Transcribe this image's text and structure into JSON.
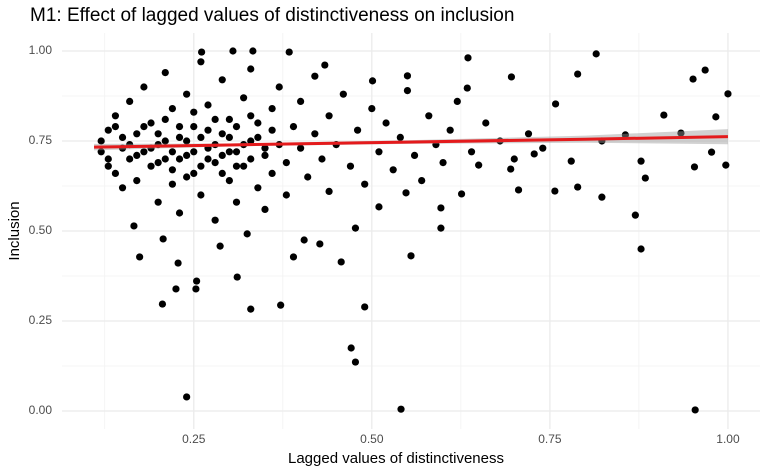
{
  "chart_data": {
    "type": "scatter",
    "title": "M1: Effect of lagged values of distinctiveness on inclusion",
    "x_label": "Lagged values of distinctiveness",
    "y_label": "Inclusion",
    "xlim": [
      0.065,
      1.045
    ],
    "ylim": [
      -0.05,
      1.05
    ],
    "xticks": [
      {
        "value": 0.25,
        "label": "0.25"
      },
      {
        "value": 0.5,
        "label": "0.50"
      },
      {
        "value": 0.75,
        "label": "0.75"
      },
      {
        "value": 1,
        "label": "1.00"
      }
    ],
    "yticks": [
      {
        "value": 0,
        "label": "0.00"
      },
      {
        "value": 0.25,
        "label": "0.25"
      },
      {
        "value": 0.5,
        "label": "0.50"
      },
      {
        "value": 0.75,
        "label": "0.75"
      },
      {
        "value": 1,
        "label": "1.00"
      }
    ],
    "x_minor_grid": [
      0.125,
      0.375,
      0.625,
      0.875
    ],
    "y_minor_grid": [
      0.125,
      0.375,
      0.625,
      0.875
    ],
    "grid": true,
    "color": "#000000",
    "x": [
      0.24,
      0.541,
      0.954,
      0.471,
      0.477,
      0.49,
      0.372,
      0.33,
      0.206,
      0.254,
      0.253,
      0.225,
      0.311,
      0.228,
      0.174,
      0.555,
      0.39,
      0.457,
      0.878,
      0.87,
      0.597,
      0.597,
      0.51,
      0.823,
      0.757,
      0.789,
      0.706,
      0.884,
      0.977,
      0.953,
      0.997,
      1.0,
      0.968,
      0.951,
      0.815,
      0.789,
      0.696,
      0.635,
      0.634,
      0.758,
      0.856,
      0.934,
      0.983,
      0.91,
      0.823,
      0.878,
      0.78,
      0.728,
      0.65,
      0.695,
      0.626,
      0.548,
      0.405,
      0.427,
      0.477,
      0.325,
      0.287,
      0.207,
      0.166,
      0.333,
      0.261,
      0.305,
      0.384,
      0.434,
      0.501,
      0.55,
      0.12,
      0.13,
      0.13,
      0.14,
      0.14,
      0.15,
      0.15,
      0.16,
      0.16,
      0.17,
      0.17,
      0.18,
      0.18,
      0.19,
      0.19,
      0.2,
      0.2,
      0.21,
      0.21,
      0.22,
      0.22,
      0.23,
      0.23,
      0.24,
      0.24,
      0.25,
      0.25,
      0.26,
      0.26,
      0.27,
      0.27,
      0.28,
      0.28,
      0.29,
      0.29,
      0.3,
      0.3,
      0.31,
      0.31,
      0.32,
      0.32,
      0.33,
      0.33,
      0.34,
      0.34,
      0.35,
      0.35,
      0.36,
      0.36,
      0.37,
      0.37,
      0.38,
      0.38,
      0.39,
      0.4,
      0.4,
      0.41,
      0.42,
      0.42,
      0.43,
      0.44,
      0.44,
      0.45,
      0.46,
      0.47,
      0.48,
      0.49,
      0.5,
      0.51,
      0.52,
      0.53,
      0.54,
      0.55,
      0.56,
      0.57,
      0.58,
      0.59,
      0.6,
      0.61,
      0.62,
      0.64,
      0.66,
      0.68,
      0.7,
      0.72,
      0.74,
      0.15,
      0.16,
      0.17,
      0.18,
      0.19,
      0.2,
      0.2,
      0.21,
      0.21,
      0.22,
      0.22,
      0.23,
      0.23,
      0.24,
      0.24,
      0.25,
      0.25,
      0.26,
      0.26,
      0.27,
      0.27,
      0.28,
      0.28,
      0.29,
      0.29,
      0.3,
      0.3,
      0.31,
      0.31,
      0.32,
      0.33,
      0.33,
      0.34,
      0.35,
      0.36,
      0.12,
      0.14,
      0.13
    ],
    "values": [
      0.039,
      0.005,
      0.003,
      0.175,
      0.136,
      0.289,
      0.294,
      0.283,
      0.297,
      0.361,
      0.339,
      0.339,
      0.372,
      0.411,
      0.428,
      0.431,
      0.428,
      0.414,
      0.45,
      0.544,
      0.564,
      0.508,
      0.567,
      0.594,
      0.611,
      0.622,
      0.614,
      0.647,
      0.719,
      0.678,
      0.683,
      0.881,
      0.947,
      0.922,
      0.992,
      0.936,
      0.928,
      0.981,
      0.897,
      0.853,
      0.767,
      0.772,
      0.817,
      0.822,
      0.75,
      0.694,
      0.694,
      0.714,
      0.683,
      0.672,
      0.603,
      0.606,
      0.475,
      0.464,
      0.508,
      0.492,
      0.458,
      0.478,
      0.514,
      1.0,
      0.997,
      1.0,
      0.997,
      0.961,
      0.917,
      0.931,
      0.75,
      0.7,
      0.78,
      0.66,
      0.82,
      0.73,
      0.62,
      0.86,
      0.7,
      0.77,
      0.64,
      0.9,
      0.72,
      0.68,
      0.8,
      0.58,
      0.74,
      0.94,
      0.7,
      0.84,
      0.63,
      0.76,
      0.55,
      0.88,
      0.71,
      0.66,
      0.79,
      0.97,
      0.6,
      0.73,
      0.85,
      0.69,
      0.53,
      0.77,
      0.92,
      0.64,
      0.81,
      0.72,
      0.58,
      0.87,
      0.68,
      0.75,
      0.95,
      0.62,
      0.8,
      0.71,
      0.56,
      0.84,
      0.66,
      0.74,
      0.9,
      0.69,
      0.6,
      0.79,
      0.73,
      0.86,
      0.65,
      0.77,
      0.93,
      0.7,
      0.82,
      0.61,
      0.74,
      0.88,
      0.68,
      0.78,
      0.63,
      0.84,
      0.72,
      0.8,
      0.67,
      0.76,
      0.89,
      0.71,
      0.64,
      0.82,
      0.74,
      0.69,
      0.78,
      0.86,
      0.72,
      0.8,
      0.75,
      0.7,
      0.77,
      0.73,
      0.76,
      0.74,
      0.71,
      0.79,
      0.73,
      0.77,
      0.69,
      0.75,
      0.81,
      0.72,
      0.67,
      0.79,
      0.7,
      0.75,
      0.65,
      0.72,
      0.83,
      0.76,
      0.68,
      0.78,
      0.7,
      0.74,
      0.81,
      0.71,
      0.66,
      0.76,
      0.72,
      0.79,
      0.68,
      0.74,
      0.7,
      0.82,
      0.76,
      0.73,
      0.78,
      0.72,
      0.79,
      0.68
    ],
    "fit": {
      "color": "#e41a1c",
      "band_color": "#999999",
      "x": [
        0.11,
        0.3,
        0.55,
        0.8,
        1.0
      ],
      "values": [
        0.733,
        0.739,
        0.747,
        0.755,
        0.762
      ],
      "lower": [
        0.724,
        0.735,
        0.742,
        0.745,
        0.741
      ],
      "upper": [
        0.742,
        0.743,
        0.752,
        0.765,
        0.783
      ]
    }
  }
}
